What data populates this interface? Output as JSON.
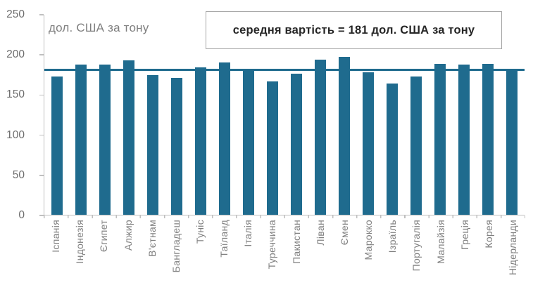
{
  "colors": {
    "bar": "#1f6b8e",
    "average_line": "#1f6b8e",
    "axis": "#bfbfbf",
    "grey_text": "#7f7f7f",
    "annotation_text": "#262626",
    "annotation_border": "#a6a6a6",
    "background": "#ffffff"
  },
  "chart_data": {
    "type": "bar",
    "title": "",
    "ylabel": "дол. США за тону",
    "xlabel": "",
    "ylim": [
      0,
      250
    ],
    "yticks": [
      0,
      50,
      100,
      150,
      200,
      250
    ],
    "grid": false,
    "legend": "none",
    "average": 181,
    "annotation": "середня вартість = 181 дол. США за тону",
    "categories": [
      "Іспанія",
      "Індонезія",
      "Єгипет",
      "Алжир",
      "В'єтнам",
      "Бангладеш",
      "Туніс",
      "Таїланд",
      "Італія",
      "Туреччина",
      "Пакистан",
      "Ліван",
      "Ємен",
      "Марокко",
      "Ізраїль",
      "Португалія",
      "Малайзія",
      "Греція",
      "Корея",
      "Нідерланди"
    ],
    "values": [
      173,
      188,
      188,
      193,
      175,
      171,
      184,
      190,
      182,
      167,
      176,
      194,
      197,
      178,
      164,
      173,
      189,
      188,
      189,
      181
    ]
  }
}
